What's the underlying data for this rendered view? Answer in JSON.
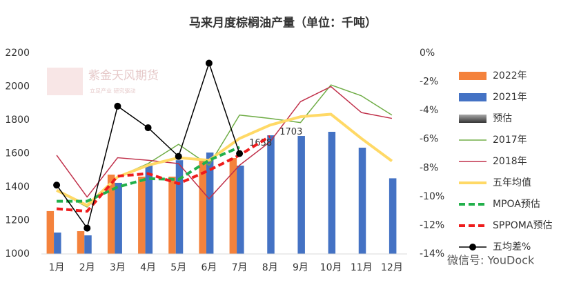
{
  "chart_data": {
    "type": "combo",
    "title": "马来月度棕榈油产量（单位：千吨）",
    "watermark": "紫金天风期货",
    "watermark_sub": "立足产业 研究驱动",
    "footer": "微信号: YouDock",
    "categories": [
      "1月",
      "2月",
      "3月",
      "4月",
      "5月",
      "6月",
      "7月",
      "8月",
      "9月",
      "10月",
      "11月",
      "12月"
    ],
    "ylim": [
      1000,
      2200
    ],
    "yticks": [
      1000,
      1200,
      1400,
      1600,
      1800,
      2000,
      2200
    ],
    "y2lim": [
      -14,
      0
    ],
    "y2ticks": [
      {
        "value": 0,
        "label": "0%"
      },
      {
        "value": -2,
        "label": "-2%"
      },
      {
        "value": -4,
        "label": "-4%"
      },
      {
        "value": -6,
        "label": "-6%"
      },
      {
        "value": -8,
        "label": "-8%"
      },
      {
        "value": -10,
        "label": "-10%"
      },
      {
        "value": -12,
        "label": "-12%"
      },
      {
        "value": -14,
        "label": "-14%"
      }
    ],
    "series": [
      {
        "name": "2022年",
        "type": "bar",
        "color": "#f4823c",
        "values": [
          1256,
          1136,
          1474,
          1462,
          1462,
          1561,
          1573,
          null,
          null,
          null,
          null,
          null
        ]
      },
      {
        "name": "2021年",
        "type": "bar",
        "color": "#4472c4",
        "values": [
          1128,
          1111,
          1425,
          1532,
          1560,
          1606,
          1528,
          1709,
          1705,
          1730,
          1635,
          1452
        ]
      },
      {
        "name": "预估",
        "type": "bar",
        "color": "#666666",
        "values": [
          null,
          null,
          null,
          null,
          null,
          null,
          null,
          null,
          null,
          null,
          null,
          null
        ]
      },
      {
        "name": "2017年",
        "type": "line",
        "color": "#70ad47",
        "width": 1.5,
        "values": [
          1380,
          1280,
          1460,
          1540,
          1655,
          1530,
          1830,
          1810,
          1785,
          2010,
          1945,
          1830
        ]
      },
      {
        "name": "2018年",
        "type": "line",
        "color": "#c0304a",
        "width": 1.5,
        "values": [
          1590,
          1340,
          1575,
          1560,
          1540,
          1330,
          1530,
          1670,
          1910,
          2000,
          1845,
          1810
        ]
      },
      {
        "name": "五年均值",
        "type": "line",
        "color": "#ffd966",
        "width": 4,
        "values": [
          1380,
          1290,
          1460,
          1530,
          1575,
          1560,
          1690,
          1770,
          1820,
          1835,
          1690,
          1555
        ]
      },
      {
        "name": "MPOA预估",
        "type": "line",
        "color": "#22b04b",
        "width": 4,
        "dash": true,
        "values": [
          1315,
          1315,
          1400,
          1450,
          1445,
          1560,
          1638,
          null,
          null,
          null,
          null,
          null
        ],
        "value_labels": [
          null,
          null,
          null,
          null,
          null,
          null,
          "1638",
          null,
          null,
          null,
          null,
          null
        ]
      },
      {
        "name": "SPPOMA预估",
        "type": "line",
        "color": "#ee1c1c",
        "width": 4,
        "dash": true,
        "values": [
          1270,
          1255,
          1465,
          1480,
          1420,
          1500,
          1590,
          1703,
          null,
          null,
          null,
          null
        ],
        "value_labels": [
          null,
          null,
          null,
          null,
          null,
          null,
          null,
          "1703",
          null,
          null,
          null,
          null
        ]
      },
      {
        "name": "五均差%",
        "type": "line",
        "color": "#000000",
        "width": 1.5,
        "marker": true,
        "axis": "y2",
        "values": [
          -9.2,
          -12.2,
          -3.7,
          -5.2,
          -7.2,
          -0.7,
          -7.0,
          null,
          null,
          null,
          null,
          null
        ]
      }
    ]
  }
}
